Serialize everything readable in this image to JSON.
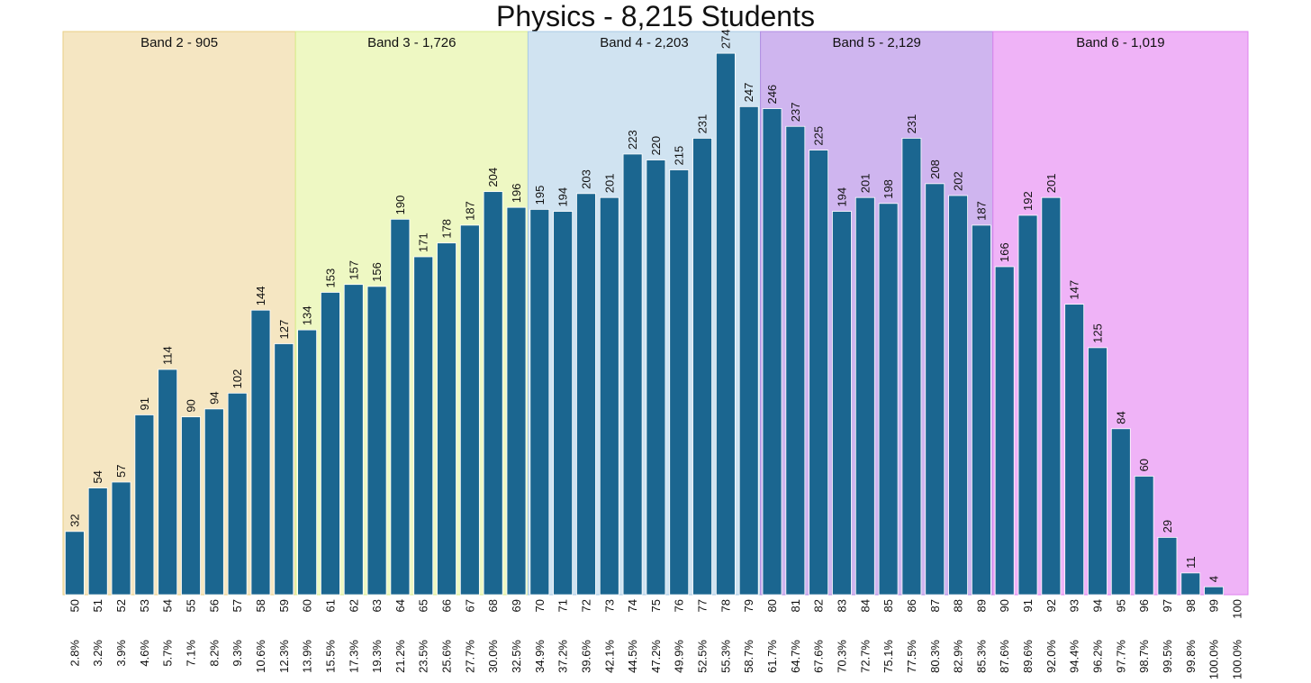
{
  "chart_data": {
    "type": "bar",
    "title": "Physics - 8,215 Students",
    "xlabel": "",
    "ylabel": "",
    "ylim": [
      0,
      285
    ],
    "grid": false,
    "bar_color": "#1b6690",
    "categories": [
      "50",
      "51",
      "52",
      "53",
      "54",
      "55",
      "56",
      "57",
      "58",
      "59",
      "60",
      "61",
      "62",
      "63",
      "64",
      "65",
      "66",
      "67",
      "68",
      "69",
      "70",
      "71",
      "72",
      "73",
      "74",
      "75",
      "76",
      "77",
      "78",
      "79",
      "80",
      "81",
      "82",
      "83",
      "84",
      "85",
      "86",
      "87",
      "88",
      "89",
      "90",
      "91",
      "92",
      "93",
      "94",
      "95",
      "96",
      "97",
      "98",
      "99",
      "100"
    ],
    "values": [
      32,
      54,
      57,
      91,
      114,
      90,
      94,
      102,
      144,
      127,
      134,
      153,
      157,
      156,
      190,
      171,
      178,
      187,
      204,
      196,
      195,
      194,
      203,
      201,
      223,
      220,
      215,
      231,
      274,
      247,
      246,
      237,
      225,
      194,
      201,
      198,
      231,
      208,
      202,
      187,
      166,
      192,
      201,
      147,
      125,
      84,
      60,
      29,
      11,
      4,
      0
    ],
    "percentiles": [
      "2.8%",
      "3.2%",
      "3.9%",
      "4.6%",
      "5.7%",
      "7.1%",
      "8.2%",
      "9.3%",
      "10.6%",
      "12.3%",
      "13.9%",
      "15.5%",
      "17.3%",
      "19.3%",
      "21.2%",
      "23.5%",
      "25.6%",
      "27.7%",
      "30.0%",
      "32.5%",
      "34.9%",
      "37.2%",
      "39.6%",
      "42.1%",
      "44.5%",
      "47.2%",
      "49.9%",
      "52.5%",
      "55.3%",
      "58.7%",
      "61.7%",
      "64.7%",
      "67.6%",
      "70.3%",
      "72.7%",
      "75.1%",
      "77.5%",
      "80.3%",
      "82.9%",
      "85.3%",
      "87.6%",
      "89.6%",
      "92.0%",
      "94.4%",
      "96.2%",
      "97.7%",
      "98.7%",
      "99.5%",
      "99.8%",
      "100.0%",
      "100.0%"
    ],
    "bands": [
      {
        "label": "Band 2 - 905",
        "start": "50",
        "end": "59",
        "color": "#f5e6c2",
        "edge": "#e9cf86"
      },
      {
        "label": "Band 3 - 1,726",
        "start": "60",
        "end": "69",
        "color": "#eef8c3",
        "edge": "#d8ec8c"
      },
      {
        "label": "Band 4 - 2,203",
        "start": "70",
        "end": "79",
        "color": "#d0e3f1",
        "edge": "#a9c9e4"
      },
      {
        "label": "Band 5 - 2,129",
        "start": "80",
        "end": "89",
        "color": "#cfb5ef",
        "edge": "#b28be3"
      },
      {
        "label": "Band 6 - 1,019",
        "start": "90",
        "end": "100",
        "color": "#efb3f7",
        "edge": "#dc82ee"
      }
    ]
  }
}
